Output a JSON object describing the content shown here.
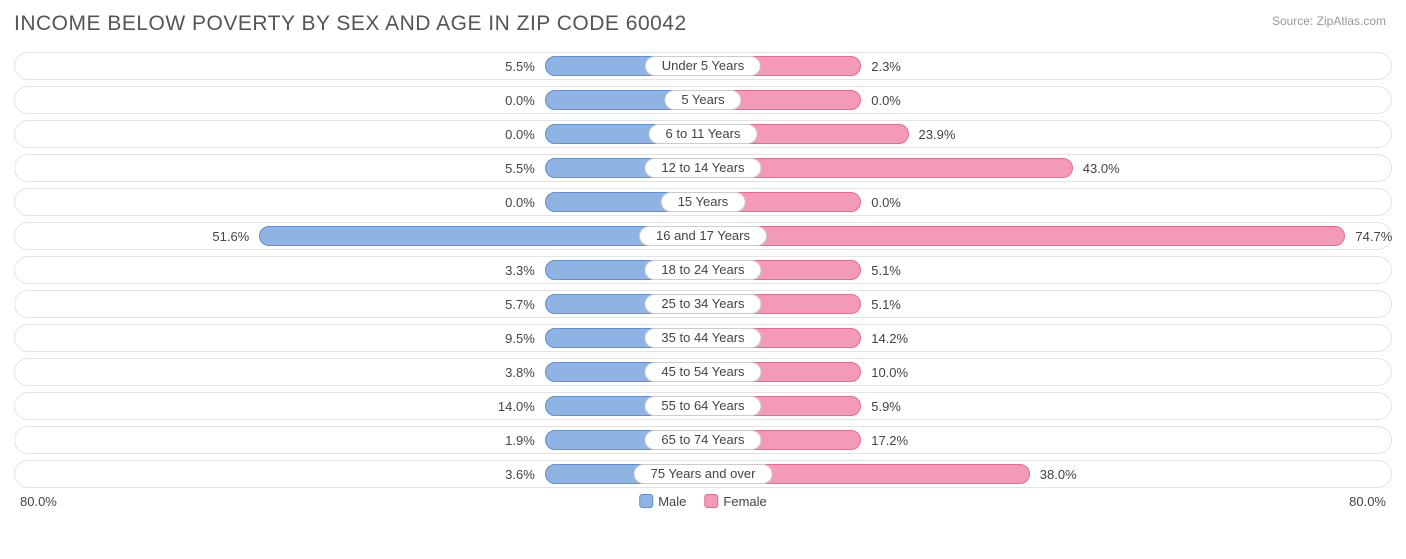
{
  "title": "INCOME BELOW POVERTY BY SEX AND AGE IN ZIP CODE 60042",
  "source": "Source: ZipAtlas.com",
  "chart": {
    "type": "diverging-bar",
    "axis_max": 80.0,
    "axis_label_left": "80.0%",
    "axis_label_right": "80.0%",
    "min_bar_pct": 11.5,
    "colors": {
      "male_fill": "#8fb4e3",
      "male_stroke": "#5e8fd0",
      "female_fill": "#f39ab6",
      "female_stroke": "#e86a94",
      "track_border": "#e3e3e3",
      "pill_border": "#cccccc",
      "text": "#444444",
      "title_text": "#555555",
      "source_text": "#999999",
      "background": "#ffffff"
    },
    "legend": [
      {
        "label": "Male",
        "color": "#8fb4e3",
        "stroke": "#5e8fd0"
      },
      {
        "label": "Female",
        "color": "#f39ab6",
        "stroke": "#e86a94"
      }
    ],
    "rows": [
      {
        "category": "Under 5 Years",
        "male": 5.5,
        "female": 2.3,
        "male_label": "5.5%",
        "female_label": "2.3%"
      },
      {
        "category": "5 Years",
        "male": 0.0,
        "female": 0.0,
        "male_label": "0.0%",
        "female_label": "0.0%"
      },
      {
        "category": "6 to 11 Years",
        "male": 0.0,
        "female": 23.9,
        "male_label": "0.0%",
        "female_label": "23.9%"
      },
      {
        "category": "12 to 14 Years",
        "male": 5.5,
        "female": 43.0,
        "male_label": "5.5%",
        "female_label": "43.0%"
      },
      {
        "category": "15 Years",
        "male": 0.0,
        "female": 0.0,
        "male_label": "0.0%",
        "female_label": "0.0%"
      },
      {
        "category": "16 and 17 Years",
        "male": 51.6,
        "female": 74.7,
        "male_label": "51.6%",
        "female_label": "74.7%"
      },
      {
        "category": "18 to 24 Years",
        "male": 3.3,
        "female": 5.1,
        "male_label": "3.3%",
        "female_label": "5.1%"
      },
      {
        "category": "25 to 34 Years",
        "male": 5.7,
        "female": 5.1,
        "male_label": "5.7%",
        "female_label": "5.1%"
      },
      {
        "category": "35 to 44 Years",
        "male": 9.5,
        "female": 14.2,
        "male_label": "9.5%",
        "female_label": "14.2%"
      },
      {
        "category": "45 to 54 Years",
        "male": 3.8,
        "female": 10.0,
        "male_label": "3.8%",
        "female_label": "10.0%"
      },
      {
        "category": "55 to 64 Years",
        "male": 14.0,
        "female": 5.9,
        "male_label": "14.0%",
        "female_label": "5.9%"
      },
      {
        "category": "65 to 74 Years",
        "male": 1.9,
        "female": 17.2,
        "male_label": "1.9%",
        "female_label": "17.2%"
      },
      {
        "category": "75 Years and over",
        "male": 3.6,
        "female": 38.0,
        "male_label": "3.6%",
        "female_label": "38.0%"
      }
    ]
  }
}
